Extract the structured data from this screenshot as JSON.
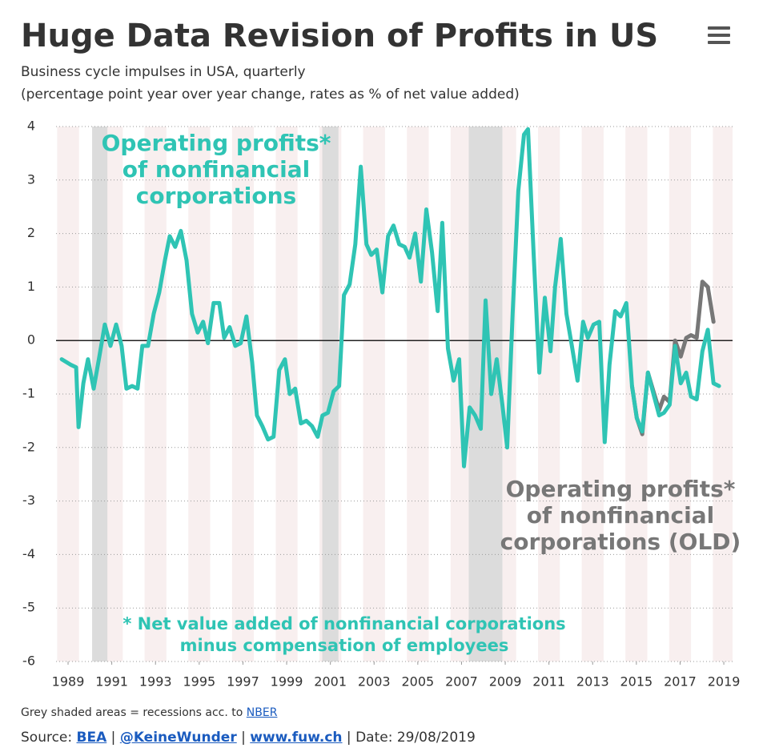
{
  "chart_data": {
    "type": "line",
    "title": "Huge Data Revision of Profits in US",
    "subtitle": [
      "Business cycle impulses in USA, quarterly",
      "(percentage point year over year change, rates as % of net value added)"
    ],
    "xlim": [
      1988.45,
      2019.4
    ],
    "xticks": [
      1989,
      1991,
      1993,
      1995,
      1997,
      1999,
      2001,
      2003,
      2005,
      2007,
      2009,
      2011,
      2013,
      2015,
      2017,
      2019
    ],
    "ylim": [
      -6,
      4
    ],
    "yticks": [
      -6,
      -5,
      -4,
      -3,
      -2,
      -1,
      0,
      1,
      2,
      3,
      4
    ],
    "grid": true,
    "recessions": [
      [
        1990.1,
        1990.8
      ],
      [
        2000.63,
        2001.37
      ],
      [
        2007.33,
        2008.87
      ]
    ],
    "recession_color": "#dcdcdc",
    "stripe_color": "#f8efef",
    "series": [
      {
        "name": "Operating profits* of nonfinancial corporations",
        "label_lines": [
          "Operating profits*",
          "of nonfinancial",
          "corporations"
        ],
        "color": "#2fc4b4",
        "x": [
          1988.71,
          1989.11,
          1989.37,
          1989.48,
          1989.7,
          1989.91,
          1990.17,
          1990.43,
          1990.68,
          1990.94,
          1991.2,
          1991.45,
          1991.67,
          1991.93,
          1992.18,
          1992.4,
          1992.66,
          1992.92,
          1993.17,
          1993.43,
          1993.65,
          1993.9,
          1994.16,
          1994.42,
          1994.67,
          1994.93,
          1995.18,
          1995.4,
          1995.66,
          1995.92,
          1996.14,
          1996.39,
          1996.65,
          1996.9,
          1997.16,
          1997.42,
          1997.64,
          1997.89,
          1998.15,
          1998.4,
          1998.66,
          1998.92,
          1999.14,
          1999.39,
          1999.65,
          1999.9,
          2000.16,
          2000.42,
          2000.64,
          2000.89,
          2001.15,
          2001.4,
          2001.62,
          2001.88,
          2002.14,
          2002.39,
          2002.65,
          2002.87,
          2003.12,
          2003.38,
          2003.64,
          2003.89,
          2004.15,
          2004.4,
          2004.62,
          2004.88,
          2005.14,
          2005.39,
          2005.65,
          2005.91,
          2006.12,
          2006.38,
          2006.64,
          2006.89,
          2007.11,
          2007.37,
          2007.62,
          2007.88,
          2008.1,
          2008.36,
          2008.61,
          2008.87,
          2009.09,
          2009.34,
          2009.6,
          2009.86,
          2010.04,
          2010.3,
          2010.56,
          2010.81,
          2011.07,
          2011.28,
          2011.54,
          2011.8,
          2012.05,
          2012.31,
          2012.56,
          2012.78,
          2013.04,
          2013.3,
          2013.55,
          2013.77,
          2014.03,
          2014.28,
          2014.54,
          2014.8,
          2015.02,
          2015.27,
          2015.53,
          2015.78,
          2016.04,
          2016.26,
          2016.52,
          2016.77,
          2017.03,
          2017.28,
          2017.5,
          2017.76,
          2018.02,
          2018.27,
          2018.53,
          2018.78
        ],
        "values": [
          -0.35,
          -0.45,
          -0.5,
          -1.62,
          -0.8,
          -0.35,
          -0.9,
          -0.3,
          0.3,
          -0.1,
          0.3,
          -0.1,
          -0.9,
          -0.85,
          -0.9,
          -0.1,
          -0.1,
          0.5,
          0.9,
          1.5,
          1.95,
          1.75,
          2.05,
          1.5,
          0.5,
          0.15,
          0.35,
          -0.05,
          0.7,
          0.7,
          0.05,
          0.25,
          -0.1,
          -0.05,
          0.45,
          -0.4,
          -1.4,
          -1.6,
          -1.85,
          -1.8,
          -0.55,
          -0.35,
          -1.0,
          -0.9,
          -1.55,
          -1.5,
          -1.6,
          -1.8,
          -1.4,
          -1.35,
          -0.95,
          -0.85,
          0.85,
          1.05,
          1.8,
          3.25,
          1.8,
          1.6,
          1.7,
          0.9,
          1.95,
          2.15,
          1.8,
          1.75,
          1.55,
          2.0,
          1.1,
          2.45,
          1.65,
          0.55,
          2.2,
          -0.15,
          -0.75,
          -0.35,
          -2.35,
          -1.25,
          -1.4,
          -1.65,
          0.75,
          -1.0,
          -0.35,
          -1.2,
          -2.0,
          0.5,
          2.8,
          3.85,
          3.95,
          1.6,
          -0.6,
          0.8,
          -0.2,
          1.0,
          1.9,
          0.5,
          -0.1,
          -0.75,
          0.35,
          0.05,
          0.3,
          0.35,
          -1.9,
          -0.45,
          0.55,
          0.45,
          0.7,
          -0.85,
          -1.45,
          -1.7,
          -0.6,
          -1.0,
          -1.4,
          -1.35,
          -1.2,
          -0.1,
          -0.8,
          -0.6,
          -1.05,
          -1.1,
          -0.2,
          0.2,
          -0.8,
          -0.85
        ]
      },
      {
        "name": "Operating profits* of nonfinancial corporations (OLD)",
        "label_lines": [
          "Operating profits*",
          "of nonfinancial",
          "corporations (OLD)"
        ],
        "color": "#777777",
        "x": [
          2014.8,
          2015.02,
          2015.27,
          2015.53,
          2015.78,
          2016.04,
          2016.26,
          2016.52,
          2016.77,
          2017.03,
          2017.28,
          2017.5,
          2017.76,
          2018.02,
          2018.27,
          2018.53
        ],
        "values": [
          -0.85,
          -1.45,
          -1.75,
          -0.6,
          -0.95,
          -1.3,
          -1.05,
          -1.15,
          0.0,
          -0.3,
          0.05,
          0.1,
          0.05,
          1.1,
          1.0,
          0.35
        ]
      }
    ],
    "footnote": [
      "* Net value added of nonfinancial corporations",
      "minus compensation of employees"
    ]
  },
  "footer": {
    "note": "Grey shaded areas = recessions acc. to",
    "note_link": "NBER",
    "source_label": "Source:",
    "links": [
      "BEA",
      "@KeineWunder",
      "www.fuw.ch"
    ],
    "separator": "|",
    "date": "Date: 29/08/2019"
  }
}
